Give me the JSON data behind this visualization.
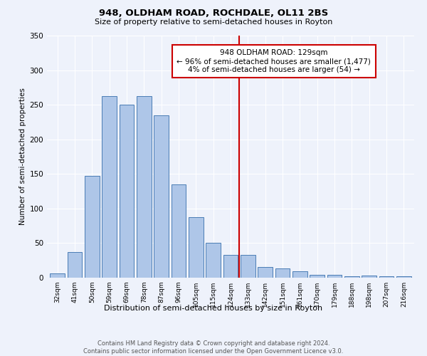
{
  "title": "948, OLDHAM ROAD, ROCHDALE, OL11 2BS",
  "subtitle": "Size of property relative to semi-detached houses in Royton",
  "xlabel": "Distribution of semi-detached houses by size in Royton",
  "ylabel": "Number of semi-detached properties",
  "footer_line1": "Contains HM Land Registry data © Crown copyright and database right 2024.",
  "footer_line2": "Contains public sector information licensed under the Open Government Licence v3.0.",
  "bar_labels": [
    "32sqm",
    "41sqm",
    "50sqm",
    "59sqm",
    "69sqm",
    "78sqm",
    "87sqm",
    "96sqm",
    "105sqm",
    "115sqm",
    "124sqm",
    "133sqm",
    "142sqm",
    "151sqm",
    "161sqm",
    "170sqm",
    "179sqm",
    "188sqm",
    "198sqm",
    "207sqm",
    "216sqm"
  ],
  "bar_values": [
    6,
    37,
    147,
    262,
    250,
    263,
    235,
    135,
    88,
    50,
    33,
    33,
    15,
    13,
    9,
    4,
    4,
    2,
    3,
    2,
    2
  ],
  "bar_color": "#aec6e8",
  "bar_edge_color": "#4a7db5",
  "background_color": "#eef2fb",
  "grid_color": "#ffffff",
  "annotation_line1": "948 OLDHAM ROAD: 129sqm",
  "annotation_line2": "← 96% of semi-detached houses are smaller (1,477)",
  "annotation_line3": "4% of semi-detached houses are larger (54) →",
  "annotation_box_color": "#ffffff",
  "annotation_box_edge_color": "#cc0000",
  "vline_x": 10.5,
  "ylim": [
    0,
    350
  ],
  "yticks": [
    0,
    50,
    100,
    150,
    200,
    250,
    300,
    350
  ]
}
